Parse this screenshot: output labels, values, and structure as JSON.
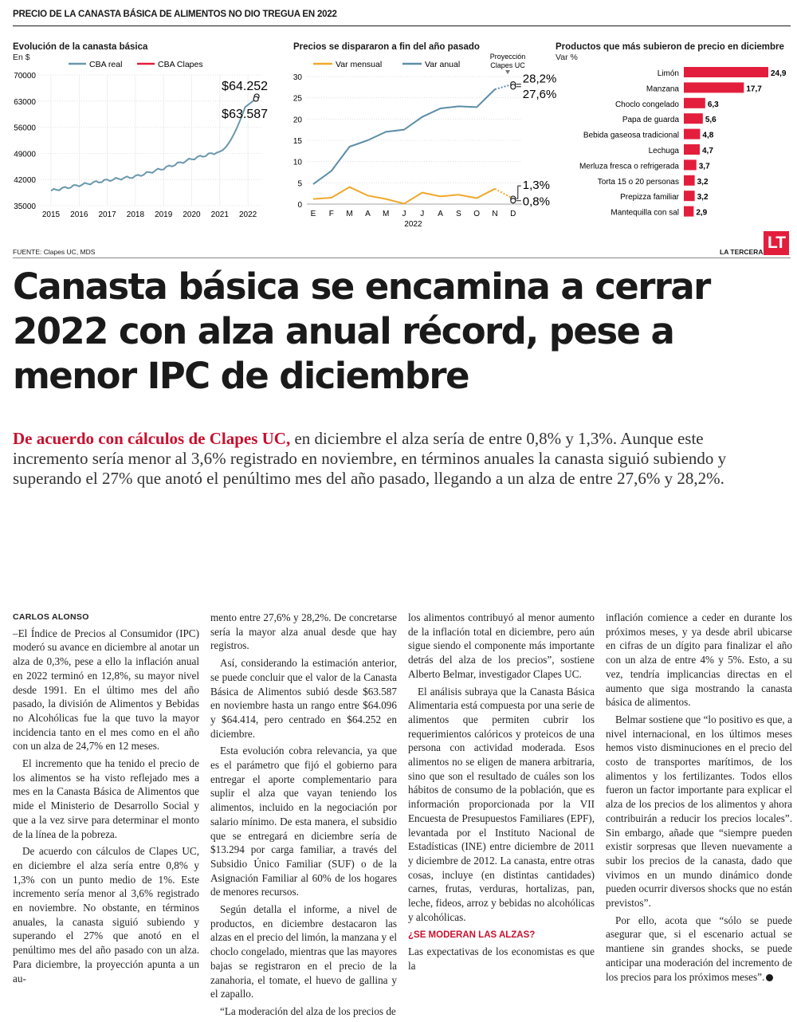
{
  "kicker": "PRECIO DE LA CANASTA BÁSICA DE ALIMENTOS NO DIO TREGUA EN 2022",
  "charts": {
    "c1": {
      "title": "Evolución de la canasta básica",
      "unit": "En $",
      "legend": [
        "CBA real",
        "CBA Clapes"
      ],
      "y_ticks": [
        "70000",
        "63000",
        "56000",
        "49000",
        "42000",
        "35000"
      ],
      "x_ticks": [
        "2015",
        "2016",
        "2017",
        "2018",
        "2019",
        "2020",
        "2021",
        "2022"
      ],
      "label_high": "$64.252",
      "label_low": "$63.587"
    },
    "c2": {
      "title": "Precios se dispararon a fin del año pasado",
      "legend": [
        "Var mensual",
        "Var anual"
      ],
      "projection_label_1": "Proyección",
      "projection_label_2": "Clapes UC",
      "y_ticks": [
        "30",
        "25",
        "20",
        "15",
        "10",
        "5",
        "0"
      ],
      "x_ticks": [
        "E",
        "F",
        "M",
        "A",
        "M",
        "J",
        "J",
        "A",
        "S",
        "O",
        "N",
        "D"
      ],
      "year": "2022",
      "labels": [
        "28,2%",
        "27,6%",
        "1,3%",
        "0,8%"
      ]
    },
    "c3": {
      "title": "Productos que más subieron de precio en diciembre",
      "unit": "Var %"
    }
  },
  "colors": {
    "accent_red": "#e31e3c",
    "cba_real": "#6a98ae",
    "monthly": "#f0a92c",
    "annual": "#5b8ea8"
  },
  "chart_data": [
    {
      "type": "line",
      "title": "Evolución de la canasta básica",
      "ylabel": "En $",
      "ylim": [
        35000,
        70000
      ],
      "x": [
        "2015",
        "2016",
        "2017",
        "2018",
        "2019",
        "2020",
        "2021",
        "2022"
      ],
      "series": [
        {
          "name": "CBA real",
          "values": [
            39000,
            40500,
            41800,
            42800,
            45000,
            47500,
            49500,
            63587
          ]
        },
        {
          "name": "CBA Clapes",
          "values": [
            null,
            null,
            null,
            null,
            null,
            null,
            null,
            64252
          ]
        }
      ]
    },
    {
      "type": "line",
      "title": "Precios se dispararon a fin del año pasado",
      "ylim": [
        0,
        30
      ],
      "x": [
        "E",
        "F",
        "M",
        "A",
        "M",
        "J",
        "J",
        "A",
        "S",
        "O",
        "N",
        "D"
      ],
      "series": [
        {
          "name": "Var mensual",
          "values": [
            1.2,
            1.5,
            4.0,
            2.0,
            1.2,
            0.1,
            2.7,
            1.8,
            2.2,
            1.4,
            3.6,
            1.3
          ]
        },
        {
          "name": "Var anual",
          "values": [
            4.7,
            7.8,
            13.5,
            15.0,
            17.0,
            17.5,
            20.5,
            22.5,
            23.0,
            22.8,
            27.0,
            28.2
          ]
        }
      ]
    },
    {
      "type": "bar",
      "title": "Productos que más subieron de precio en diciembre",
      "ylabel": "Var %",
      "categories": [
        "Limón",
        "Manzana",
        "Choclo congelado",
        "Papa de guarda",
        "Bebida gaseosa tradicional",
        "Lechuga",
        "Merluza fresca o refrigerada",
        "Torta 15 o 20 personas",
        "Prepizza familiar",
        "Mantequilla con sal"
      ],
      "values": [
        24.9,
        17.7,
        6.3,
        5.6,
        4.8,
        4.7,
        3.7,
        3.2,
        3.2,
        2.9
      ],
      "value_labels": [
        "24,9",
        "17,7",
        "6,3",
        "5,6",
        "4,8",
        "4,7",
        "3,7",
        "3,2",
        "3,2",
        "2,9"
      ]
    }
  ],
  "source": "FUENTE: Clapes UC, MDS",
  "brand": "LA TERCERA",
  "logo": "LT",
  "headline": "Canasta básica se encamina a cerrar 2022 con alza anual récord, pese a menor IPC de diciembre",
  "lead": {
    "highlight": "De acuerdo con cálculos de Clapes UC,",
    "text": " en diciembre el alza sería de entre 0,8% y 1,3%. Aunque este incremento sería menor al 3,6% registrado en noviembre, en términos anuales la canasta siguió subiendo y superando el 27% que anotó el penúltimo mes del año pasado, llegando a un alza de entre 27,6% y 28,2%."
  },
  "article": {
    "byline": "CARLOS ALONSO",
    "col1": [
      "–El Índice de Precios al Consumidor (IPC) moderó su avance en diciembre al anotar un alza de 0,3%, pese a ello la inflación anual en 2022 terminó en 12,8%, su mayor nivel desde 1991. En el último mes del año pasado, la división de Alimentos y Bebidas no Alcohólicas fue la que tuvo la mayor incidencia tanto en el mes como en el año con un alza de 24,7% en 12 meses.",
      "El incremento que ha tenido el precio de los alimentos se ha visto reflejado mes a mes en la Canasta Básica de Alimentos que mide el Ministerio de Desarrollo Social y que a la vez sirve para determinar el monto de la línea de la pobreza.",
      "De acuerdo con cálculos de Clapes UC, en diciembre el alza sería entre 0,8% y 1,3% con un punto medio de 1%. Este incremento sería menor al 3,6% registrado en noviembre. No obstante, en términos anuales, la canasta siguió subiendo y superando el 27% que anotó en el penúltimo mes del año pasado con un alza. Para diciembre, la proyección apunta a un au-"
    ],
    "col2": [
      "mento entre 27,6% y 28,2%. De concretarse sería la mayor alza anual desde que hay registros.",
      "Así, considerando la estimación anterior, se puede concluir que el valor de la Canasta Básica de Alimentos subió desde $63.587 en noviembre hasta un rango entre $64.096 y $64.414, pero centrado en $64.252 en diciembre.",
      "Esta evolución cobra relevancia, ya que es el parámetro que fijó el gobierno para entregar el aporte complementario para suplir el alza que vayan teniendo los alimentos, incluido en la negociación por salario mínimo. De esta manera, el subsidio que se entregará en diciembre sería de $13.294 por carga familiar, a través del Subsidio Único Familiar (SUF) o de la Asignación Familiar al 60% de los hogares de menores recursos.",
      "Según detalla el informe, a nivel de productos, en diciembre destacaron las alzas en el precio del limón, la manzana y el choclo congelado, mientras que las mayores bajas se registraron en el precio de la zanahoria, el tomate, el huevo de gallina y el zapallo.",
      "“La moderación del alza de los precios de"
    ],
    "col3": [
      "los alimentos contribuyó al menor aumento de la inflación total en diciembre, pero aún sigue siendo el componente más importante detrás del alza de los precios”, sostiene Alberto Belmar, investigador Clapes UC.",
      "El análisis subraya que la Canasta Básica Alimentaria está compuesta por una serie de alimentos que permiten cubrir los requerimientos calóricos y proteicos de una persona con actividad moderada. Esos alimentos no se eligen de manera arbitraria, sino que son el resultado de cuáles son los hábitos de consumo de la población, que es información proporcionada por la VII Encuesta de Presupuestos Familiares (EPF), levantada por el Instituto Nacional de Estadísticas (INE) entre diciembre de 2011 y diciembre de 2012. La canasta, entre otras cosas, incluye (en distintas cantidades) carnes, frutas, verduras, hortalizas, pan, leche, fideos, arroz y bebidas no alcohólicas y alcohólicas."
    ],
    "subhead": "¿SE MODERAN LAS ALZAS?",
    "col3_after": "Las expectativas de los economistas es que la",
    "col4": [
      "inflación comience a ceder en durante los próximos meses, y ya desde abril ubicarse en cifras de un dígito para finalizar el año con un alza de entre 4% y 5%. Esto, a su vez, tendría implicancias directas en el aumento que siga mostrando la canasta básica de alimentos.",
      "Belmar sostiene que “lo positivo es que, a nivel internacional, en los últimos meses hemos visto disminuciones en el precio del costo de transportes marítimos, de los alimentos y los fertilizantes. Todos ellos fueron un factor importante para explicar el alza de los precios de los alimentos y ahora contribuirán a reducir los precios locales”. Sin embargo, añade que “siempre pueden existir sorpresas que lleven nuevamente a subir los precios de la canasta, dado que vivimos en un mundo dinámico donde pueden ocurrir diversos shocks que no están previstos”.",
      "Por ello, acota que “sólo se puede asegurar que, si el escenario actual se mantiene sin grandes shocks, se puede anticipar una moderación del incremento de los precios para los próximos meses”."
    ]
  }
}
